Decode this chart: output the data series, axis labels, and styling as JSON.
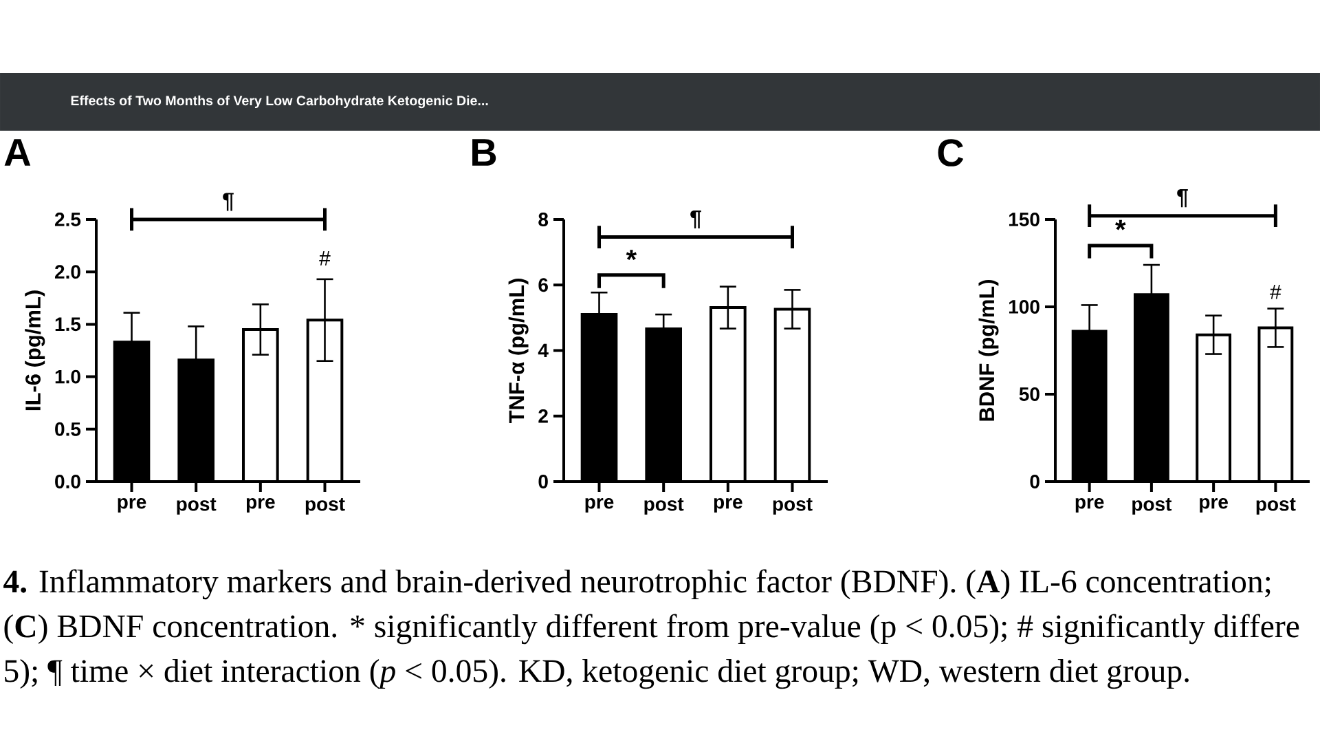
{
  "chart_data": [
    {
      "type": "bar",
      "title": "A",
      "ylabel": "IL-6 (pg/mL)",
      "categories": [
        "pre",
        "post",
        "pre",
        "post"
      ],
      "values": [
        1.33,
        1.16,
        1.45,
        1.54
      ],
      "errors": [
        0.28,
        0.32,
        0.24,
        0.39
      ],
      "colors": [
        "#000000",
        "#000000",
        "#ffffff",
        "#ffffff"
      ],
      "ylim": [
        0,
        2.5
      ],
      "yticks": [
        {
          "value": 0,
          "label": "0.0"
        },
        0.5,
        {
          "value": 1,
          "label": "1.0"
        },
        1.5,
        {
          "value": 2,
          "label": "2.0"
        },
        2.5
      ],
      "annotations": [
        "¶",
        "#",
        "**4.** Inflammatory markers and brain-derived neurotrophic factor (BDNF). (**A**) IL-6 concentration;",
        "(**C**) BDNF concentration. * significantly different from pre-value (p < 0.05); # significantly differe",
        "5); ¶ time × diet interaction (*p* < 0.05). KD, ketogenic diet group; WD, western diet group.",
        "Effects of Two Months of Very Low Carbohydrate Ketogenic Die..."
      ]
    },
    {
      "type": "bar",
      "title": "B",
      "ylabel": "TNF-α (pg/mL)",
      "categories": [
        "pre",
        "post",
        "pre",
        "post"
      ],
      "values": [
        5.1,
        4.66,
        5.31,
        5.26
      ],
      "errors": [
        0.67,
        0.44,
        0.64,
        0.59
      ],
      "colors": [
        "#000000",
        "#000000",
        "#ffffff",
        "#ffffff"
      ],
      "ylim": [
        0,
        8
      ],
      "yticks": [
        0,
        2,
        4,
        6,
        8
      ],
      "annotations": [
        "¶",
        "*"
      ]
    },
    {
      "type": "bar",
      "title": "C",
      "ylabel": "BDNF (pg/mL)",
      "categories": [
        "pre",
        "post",
        "pre",
        "post"
      ],
      "values": [
        86,
        107,
        84,
        88
      ],
      "errors": [
        15,
        17,
        11,
        11
      ],
      "colors": [
        "#000000",
        "#000000",
        "#ffffff",
        "#ffffff"
      ],
      "ylim": [
        0,
        150
      ],
      "yticks": [
        0,
        50,
        100,
        150
      ],
      "annotations": [
        "¶",
        "*",
        "#"
      ]
    }
  ]
}
